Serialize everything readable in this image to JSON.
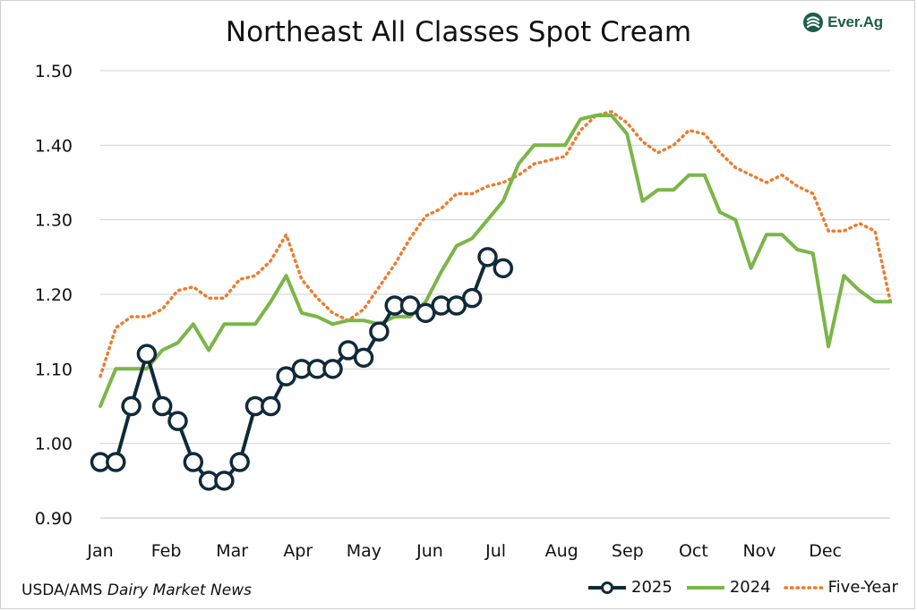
{
  "header": {
    "title": "Northeast All Classes Spot Cream",
    "logo_text": "Ever.Ag"
  },
  "footer": {
    "source_prefix": "USDA/AMS",
    "source_italic": "Dairy Market News"
  },
  "colors": {
    "series_2025": "#0f2a3a",
    "series_2024": "#7ab648",
    "series_five_year": "#ec7c30",
    "grid": "#d0d0d0",
    "logo": "#1d5c49"
  },
  "chart_data": {
    "type": "line",
    "title": "Northeast All Classes Spot Cream",
    "xlabel": "",
    "ylabel": "",
    "ylim": [
      0.9,
      1.5
    ],
    "y_ticks": [
      "0.90",
      "1.00",
      "1.10",
      "1.20",
      "1.30",
      "1.40",
      "1.50"
    ],
    "month_labels": [
      "Jan",
      "Feb",
      "Mar",
      "Apr",
      "May",
      "Jun",
      "Jul",
      "Aug",
      "Sep",
      "Oct",
      "Nov",
      "Dec"
    ],
    "grid": true,
    "legend_position": "bottom-right",
    "series": [
      {
        "name": "2025",
        "style": "line-markers",
        "x": [
          1,
          2,
          3,
          4,
          5,
          6,
          7,
          8,
          9,
          10,
          11,
          12,
          13,
          14,
          15,
          16,
          17,
          18,
          19,
          20,
          21,
          22,
          23,
          24,
          25,
          26,
          27
        ],
        "values": [
          0.975,
          0.975,
          1.05,
          1.12,
          1.05,
          1.03,
          0.975,
          0.95,
          0.95,
          0.975,
          1.05,
          1.05,
          1.09,
          1.1,
          1.1,
          1.1,
          1.125,
          1.115,
          1.15,
          1.185,
          1.185,
          1.175,
          1.185,
          1.185,
          1.195,
          1.25,
          1.235
        ]
      },
      {
        "name": "2024",
        "style": "solid",
        "x": [
          1,
          2,
          3,
          4,
          5,
          6,
          7,
          8,
          9,
          10,
          11,
          12,
          13,
          14,
          15,
          16,
          17,
          18,
          19,
          20,
          21,
          22,
          23,
          24,
          25,
          26,
          27,
          28,
          29,
          30,
          31,
          32,
          33,
          34,
          35,
          36,
          37,
          38,
          39,
          40,
          41,
          42,
          43,
          44,
          45,
          46,
          47,
          48,
          49,
          50,
          51,
          52
        ],
        "values": [
          1.05,
          1.1,
          1.1,
          1.1,
          1.125,
          1.135,
          1.16,
          1.125,
          1.16,
          1.16,
          1.16,
          1.19,
          1.225,
          1.175,
          1.17,
          1.16,
          1.165,
          1.165,
          1.16,
          1.17,
          1.17,
          1.19,
          1.23,
          1.265,
          1.275,
          1.3,
          1.325,
          1.375,
          1.4,
          1.4,
          1.4,
          1.435,
          1.44,
          1.44,
          1.415,
          1.325,
          1.34,
          1.34,
          1.36,
          1.36,
          1.31,
          1.3,
          1.235,
          1.28,
          1.28,
          1.26,
          1.255,
          1.13,
          1.225,
          1.205,
          1.19,
          1.19
        ]
      },
      {
        "name": "Five-Year",
        "style": "dotted",
        "x": [
          1,
          2,
          3,
          4,
          5,
          6,
          7,
          8,
          9,
          10,
          11,
          12,
          13,
          14,
          15,
          16,
          17,
          18,
          19,
          20,
          21,
          22,
          23,
          24,
          25,
          26,
          27,
          28,
          29,
          30,
          31,
          32,
          33,
          34,
          35,
          36,
          37,
          38,
          39,
          40,
          41,
          42,
          43,
          44,
          45,
          46,
          47,
          48,
          49,
          50,
          51,
          52
        ],
        "values": [
          1.09,
          1.155,
          1.17,
          1.17,
          1.18,
          1.205,
          1.21,
          1.195,
          1.195,
          1.22,
          1.225,
          1.245,
          1.28,
          1.22,
          1.195,
          1.175,
          1.165,
          1.18,
          1.21,
          1.24,
          1.275,
          1.305,
          1.315,
          1.335,
          1.335,
          1.345,
          1.35,
          1.36,
          1.375,
          1.38,
          1.385,
          1.42,
          1.44,
          1.445,
          1.43,
          1.405,
          1.39,
          1.4,
          1.42,
          1.415,
          1.39,
          1.37,
          1.36,
          1.35,
          1.36,
          1.345,
          1.335,
          1.285,
          1.285,
          1.295,
          1.285,
          1.19
        ]
      }
    ]
  }
}
